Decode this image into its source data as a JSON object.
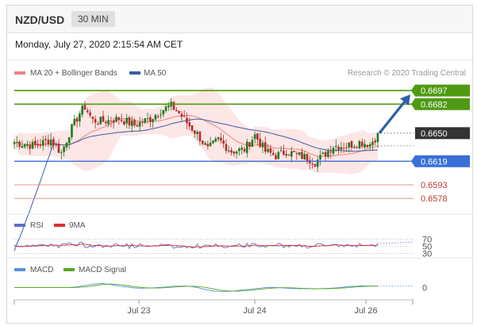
{
  "header": {
    "symbol": "NZD/USD",
    "timeframe": "30 MIN"
  },
  "datetime": "Monday, July 27, 2020 2:15:54 AM CET",
  "credit": "Research © 2020 Trading Central",
  "colors": {
    "bull": "#1e7a1e",
    "bear": "#b52a2a",
    "ma20": "#f08080",
    "ma50": "#3b5ba5",
    "band": "#fde2e2",
    "resistance": "#4f9a12",
    "support": "#3a6fd8",
    "minor": "#e99090",
    "arrow": "#2a5fa8",
    "rsi": "#5d6fc8",
    "rsi_ma": "#e03030",
    "macd": "#5d8fd8",
    "macd_signal": "#55aa22"
  },
  "chart_data": [
    {
      "type": "candlestick",
      "title": "",
      "legend": [
        {
          "name": "MA 20 + Bollinger Bands",
          "color": "#f08080"
        },
        {
          "name": "MA 50",
          "color": "#3b5ba5"
        }
      ],
      "xlabels": [
        "Jul 23",
        "Jul 24",
        "Jul 26"
      ],
      "ylim": [
        0.6565,
        0.6705
      ],
      "current_price": 0.665,
      "levels": [
        {
          "value": 0.6697,
          "label": "0.6697",
          "kind": "resistance"
        },
        {
          "value": 0.6682,
          "label": "0.6682",
          "kind": "resistance"
        },
        {
          "value": 0.665,
          "label": "0.6650",
          "kind": "current"
        },
        {
          "value": 0.6619,
          "label": "0.6619",
          "kind": "support"
        },
        {
          "value": 0.6593,
          "label": "0.6593",
          "kind": "minor"
        },
        {
          "value": 0.6578,
          "label": "0.6578",
          "kind": "minor"
        }
      ],
      "path_keypoints": [
        [
          0,
          0.664
        ],
        [
          8,
          0.6636
        ],
        [
          14,
          0.6643
        ],
        [
          18,
          0.6628
        ],
        [
          21,
          0.665
        ],
        [
          25,
          0.6672
        ],
        [
          27,
          0.6679
        ],
        [
          30,
          0.6664
        ],
        [
          34,
          0.6663
        ],
        [
          40,
          0.6666
        ],
        [
          46,
          0.6659
        ],
        [
          52,
          0.6666
        ],
        [
          56,
          0.6675
        ],
        [
          60,
          0.668
        ],
        [
          63,
          0.6672
        ],
        [
          67,
          0.6658
        ],
        [
          70,
          0.6649
        ],
        [
          74,
          0.6632
        ],
        [
          78,
          0.6643
        ],
        [
          83,
          0.663
        ],
        [
          88,
          0.6632
        ],
        [
          92,
          0.6648
        ],
        [
          96,
          0.663
        ],
        [
          100,
          0.6625
        ],
        [
          104,
          0.663
        ],
        [
          108,
          0.6626
        ],
        [
          112,
          0.6623
        ],
        [
          115,
          0.6618
        ],
        [
          118,
          0.6625
        ],
        [
          122,
          0.6636
        ],
        [
          127,
          0.6636
        ],
        [
          132,
          0.664
        ],
        [
          136,
          0.6638
        ],
        [
          139,
          0.6648
        ]
      ],
      "arrow": {
        "from_value": 0.665,
        "to_value": 0.6697
      }
    },
    {
      "type": "line",
      "title": "",
      "legend": [
        {
          "name": "RSI",
          "color": "#5d6fc8"
        },
        {
          "name": "9MA",
          "color": "#e03030"
        }
      ],
      "ylim": [
        25,
        80
      ],
      "yticks": [
        "70",
        "50",
        "30"
      ],
      "ytick_values": [
        70,
        50,
        30
      ]
    },
    {
      "type": "line",
      "title": "",
      "legend": [
        {
          "name": "MACD",
          "color": "#5d8fd8"
        },
        {
          "name": "MACD Signal",
          "color": "#55aa22"
        }
      ],
      "ylim": [
        -1,
        1
      ],
      "yticks": [
        "0"
      ],
      "ytick_values": [
        0
      ]
    }
  ]
}
